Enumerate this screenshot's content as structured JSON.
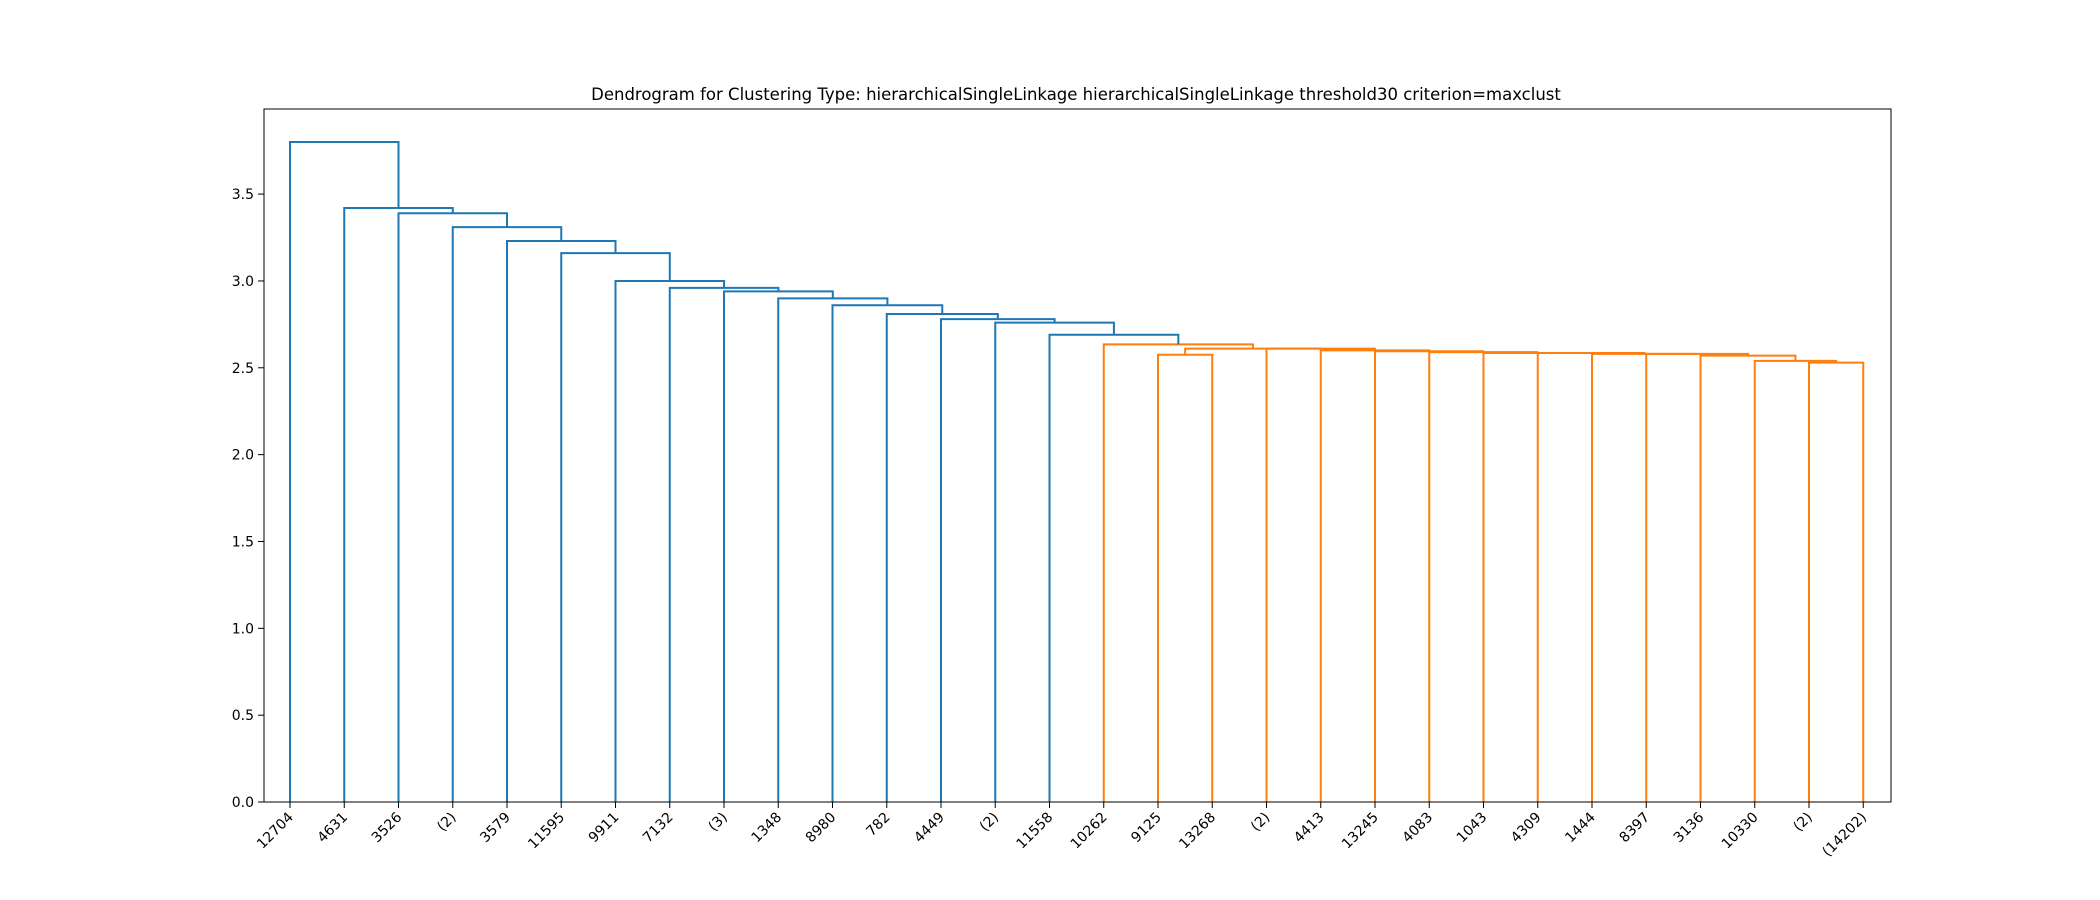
{
  "chart_data": {
    "type": "dendrogram",
    "title": "Dendrogram for Clustering Type: hierarchicalSingleLinkage hierarchicalSingleLinkage threshold30 criterion=maxclust",
    "xlabel": "",
    "ylabel": "",
    "ylim": [
      0,
      3.99
    ],
    "yticks": [
      0.0,
      0.5,
      1.0,
      1.5,
      2.0,
      2.5,
      3.0,
      3.5
    ],
    "ytick_labels": [
      "0.0",
      "0.5",
      "1.0",
      "1.5",
      "2.0",
      "2.5",
      "3.0",
      "3.5"
    ],
    "leaves": [
      "12704",
      "4631",
      "3526",
      "(2)",
      "3579",
      "11595",
      "9911",
      "7132",
      "(3)",
      "1348",
      "8980",
      "782",
      "4449",
      "(2)",
      "11558",
      "10262",
      "9125",
      "13268",
      "(2)",
      "4413",
      "13245",
      "4083",
      "1043",
      "4309",
      "1444",
      "8397",
      "3136",
      "10330",
      "(2)",
      "(14202)"
    ],
    "colors": {
      "above_threshold": "#1f77b4",
      "cluster": "#ff7f0e"
    },
    "grid": false,
    "links": [
      {
        "left": "(2)",
        "right": "(14202)",
        "height": 2.53,
        "color": "cluster"
      },
      {
        "left": "10330",
        "right": "merge:(2)+(14202)",
        "height": 2.54,
        "color": "cluster"
      },
      {
        "left": "3136",
        "right": "merge:10330",
        "height": 2.57,
        "color": "cluster"
      },
      {
        "left": "8397",
        "right": "merge:3136",
        "height": 2.58,
        "color": "cluster"
      },
      {
        "left": "1444",
        "right": "merge:8397",
        "height": 2.58,
        "color": "cluster"
      },
      {
        "left": "4309",
        "right": "merge:1444",
        "height": 2.585,
        "color": "cluster"
      },
      {
        "left": "1043",
        "right": "merge:4309",
        "height": 2.585,
        "color": "cluster"
      },
      {
        "left": "4083",
        "right": "merge:1043",
        "height": 2.59,
        "color": "cluster"
      },
      {
        "left": "13245",
        "right": "merge:4083",
        "height": 2.595,
        "color": "cluster"
      },
      {
        "left": "4413",
        "right": "merge:13245",
        "height": 2.6,
        "color": "cluster"
      },
      {
        "left": "(2)",
        "right": "merge:4413",
        "height": 2.61,
        "color": "cluster"
      },
      {
        "left": "9125",
        "right": "13268",
        "height": 2.575,
        "color": "cluster"
      },
      {
        "left": "merge:9125+13268",
        "right": "merge:(2)",
        "height": 2.61,
        "color": "cluster"
      },
      {
        "left": "10262",
        "right": "merge:9125-group",
        "height": 2.635,
        "color": "cluster"
      },
      {
        "left": "11558",
        "right": "merge:10262",
        "height": 2.69,
        "color": "above_threshold"
      },
      {
        "left": "(2)",
        "right": "merge:11558",
        "height": 2.76,
        "color": "above_threshold"
      },
      {
        "left": "4449",
        "right": "merge:(2)",
        "height": 2.78,
        "color": "above_threshold"
      },
      {
        "left": "782",
        "right": "merge:4449",
        "height": 2.81,
        "color": "above_threshold"
      },
      {
        "left": "8980",
        "right": "merge:782",
        "height": 2.86,
        "color": "above_threshold"
      },
      {
        "left": "1348",
        "right": "merge:8980",
        "height": 2.9,
        "color": "above_threshold"
      },
      {
        "left": "(3)",
        "right": "merge:1348",
        "height": 2.94,
        "color": "above_threshold"
      },
      {
        "left": "7132",
        "right": "merge:(3)",
        "height": 2.96,
        "color": "above_threshold"
      },
      {
        "left": "9911",
        "right": "merge:7132",
        "height": 3.0,
        "color": "above_threshold"
      },
      {
        "left": "11595",
        "right": "merge:9911",
        "height": 3.16,
        "color": "above_threshold"
      },
      {
        "left": "3579",
        "right": "merge:11595",
        "height": 3.23,
        "color": "above_threshold"
      },
      {
        "left": "(2)",
        "right": "merge:3579",
        "height": 3.31,
        "color": "above_threshold"
      },
      {
        "left": "3526",
        "right": "merge:(2)",
        "height": 3.39,
        "color": "above_threshold"
      },
      {
        "left": "4631",
        "right": "merge:3526",
        "height": 3.42,
        "color": "above_threshold"
      },
      {
        "left": "12704",
        "right": "merge:4631",
        "height": 3.8,
        "color": "above_threshold"
      }
    ]
  }
}
